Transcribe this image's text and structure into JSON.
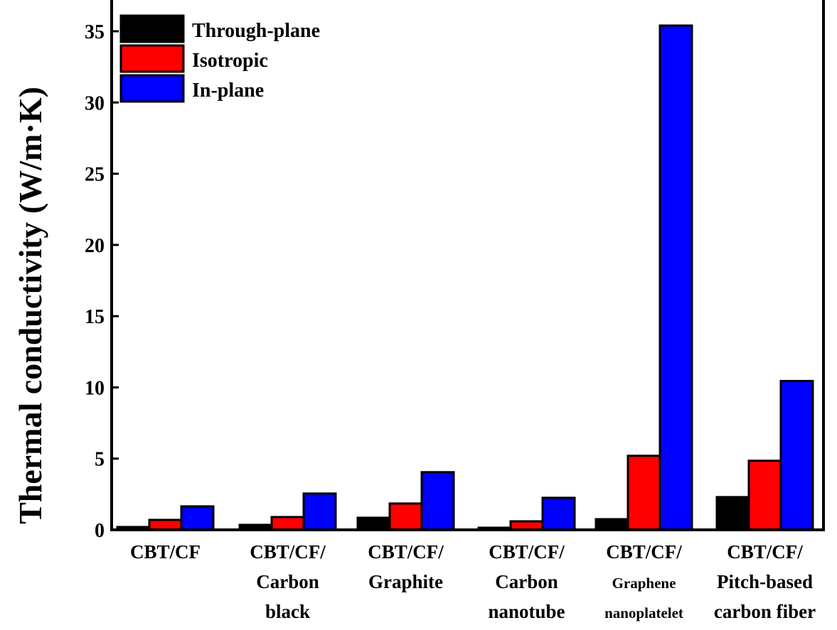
{
  "chart_data": {
    "type": "bar",
    "title": "",
    "xlabel": "",
    "ylabel": "Thermal conductivity (W/m·K)",
    "ylim": [
      0,
      35
    ],
    "yticks": [
      "0",
      "5",
      "10",
      "15",
      "20",
      "25",
      "30",
      "35"
    ],
    "legend_position": "top-left",
    "categories": [
      [
        "CBT/CF"
      ],
      [
        "CBT/CF/",
        "Carbon",
        "black"
      ],
      [
        "CBT/CF/",
        "Graphite"
      ],
      [
        "CBT/CF/",
        "Carbon",
        "nanotube"
      ],
      [
        "CBT/CF/",
        "Graphene",
        "nanoplatelet"
      ],
      [
        "CBT/CF/",
        "Pitch-based",
        "carbon fiber"
      ]
    ],
    "series": [
      {
        "name": "Through-plane",
        "color": "#000000",
        "values": [
          0.2,
          0.35,
          0.85,
          0.15,
          0.75,
          2.3
        ]
      },
      {
        "name": "Isotropic",
        "color": "#ff0000",
        "values": [
          0.7,
          0.9,
          1.85,
          0.6,
          5.2,
          4.85
        ]
      },
      {
        "name": "In-plane",
        "color": "#0000ff",
        "values": [
          1.65,
          2.55,
          4.05,
          2.25,
          35.4,
          10.45
        ]
      }
    ]
  }
}
